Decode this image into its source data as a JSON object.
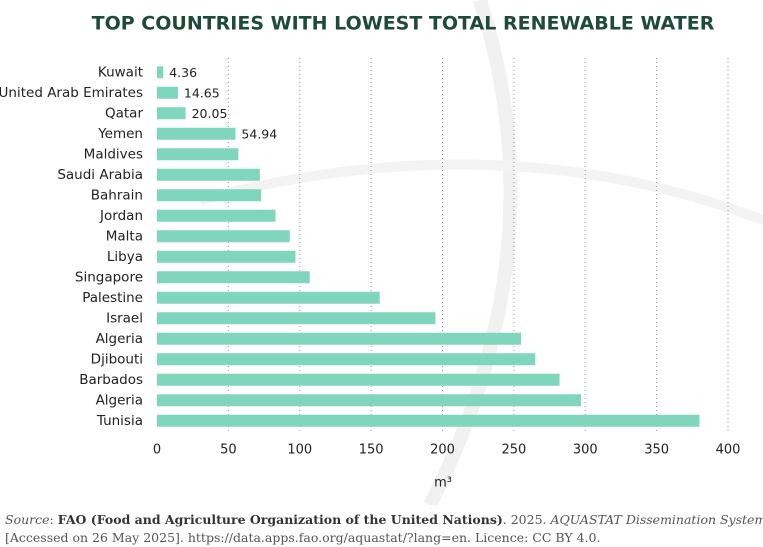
{
  "chart_data": {
    "type": "bar",
    "orientation": "horizontal",
    "title": "TOP COUNTRIES WITH LOWEST TOTAL RENEWABLE WATER",
    "categories": [
      "Kuwait",
      "United Arab Emirates",
      "Qatar",
      "Yemen",
      "Maldives",
      "Saudi Arabia",
      "Bahrain",
      "Jordan",
      "Malta",
      "Libya",
      "Singapore",
      "Palestine",
      "Israel",
      "Algeria",
      "Djibouti",
      "Barbados",
      "Algeria",
      "Tunisia"
    ],
    "values": [
      4.36,
      14.65,
      20.05,
      54.94,
      57,
      72,
      73,
      83,
      93,
      97,
      107,
      156,
      195,
      255,
      265,
      282,
      297,
      380
    ],
    "value_labels": [
      "4.36",
      "14.65",
      "20.05",
      "54.94",
      null,
      null,
      null,
      null,
      null,
      null,
      null,
      null,
      null,
      null,
      null,
      null,
      null,
      null
    ],
    "color": "#80d5bd",
    "xlim": [
      0,
      400
    ],
    "xticks": [
      0,
      50,
      100,
      150,
      200,
      250,
      300,
      350,
      400
    ],
    "xlabel": "m³",
    "grid": true,
    "source": [
      [
        {
          "text": "Source",
          "style": "italic"
        },
        {
          "text": ": "
        },
        {
          "text": "FAO (Food and Agriculture Organization of the United Nations)",
          "style": "bold"
        },
        {
          "text": ". 2025. "
        },
        {
          "text": "AQUASTAT Dissemination System.",
          "style": "italic"
        }
      ],
      [
        {
          "text": "[Accessed on 26 May 2025]. https://data.apps.fao.org/aquastat/?lang=en. Licence: CC BY 4.0."
        }
      ]
    ]
  }
}
